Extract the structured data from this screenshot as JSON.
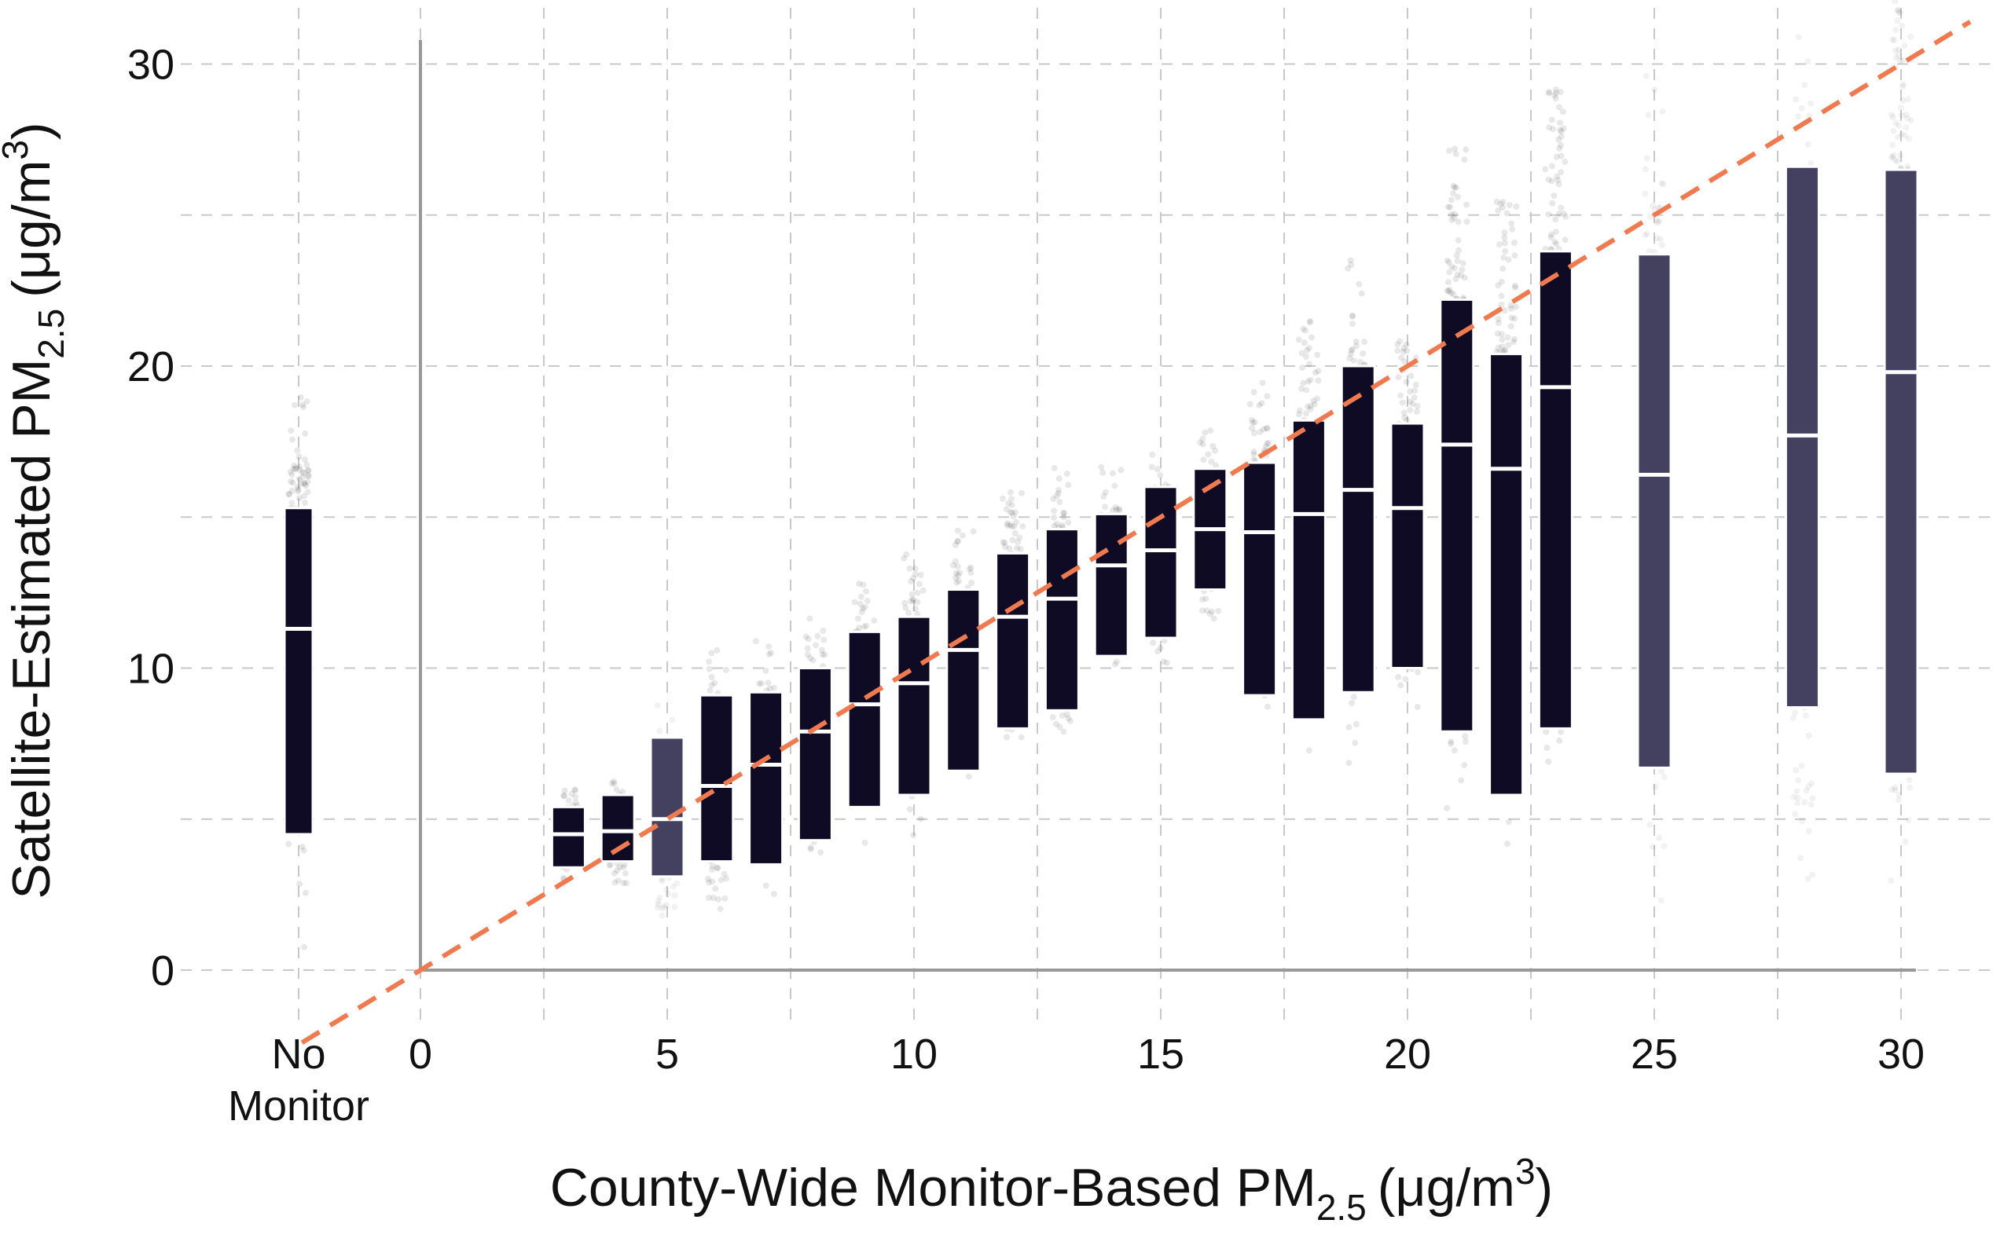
{
  "chart_data": {
    "type": "scatter",
    "title": "",
    "xlabel": {
      "main": "County-Wide Monitor-Based PM",
      "subscript": "2.5",
      "units": "(μg/m",
      "superscript": "3",
      "close": ")"
    },
    "ylabel": {
      "main": "Satellite-Estimated PM",
      "subscript": "2.5",
      "units": "(μg/m",
      "superscript": "3",
      "close": ")"
    },
    "x_ticks": [
      "0",
      "5",
      "10",
      "15",
      "20",
      "25",
      "30"
    ],
    "y_ticks": [
      "0",
      "10",
      "20",
      "30"
    ],
    "no_monitor_label": [
      "No",
      "Monitor"
    ],
    "xlim": [
      -2.5,
      31.5
    ],
    "ylim": [
      -1.2,
      31.5
    ],
    "grid": true,
    "reference_line": {
      "type": "identity",
      "slope": 1,
      "intercept": 0,
      "color": "#f07a50"
    },
    "colors": {
      "box_dark": "#0f0b24",
      "box_light": "#44405f",
      "median": "#ffffff",
      "points": "#000000",
      "axis": "#999999",
      "grid": "#c9c9c9"
    },
    "boxes": [
      {
        "x": "No Monitor",
        "low": 4.5,
        "median": 11.3,
        "high": 15.3,
        "light": false
      },
      {
        "x": 3,
        "low": 3.4,
        "median": 4.5,
        "high": 5.4,
        "light": false
      },
      {
        "x": 4,
        "low": 3.6,
        "median": 4.6,
        "high": 5.8,
        "light": false
      },
      {
        "x": 5,
        "low": 3.1,
        "median": 5.0,
        "high": 7.7,
        "light": true
      },
      {
        "x": 6,
        "low": 3.6,
        "median": 6.1,
        "high": 9.1,
        "light": false
      },
      {
        "x": 7,
        "low": 3.5,
        "median": 6.8,
        "high": 9.2,
        "light": false
      },
      {
        "x": 8,
        "low": 4.3,
        "median": 7.9,
        "high": 10.0,
        "light": false
      },
      {
        "x": 9,
        "low": 5.4,
        "median": 8.8,
        "high": 11.2,
        "light": false
      },
      {
        "x": 10,
        "low": 5.8,
        "median": 9.5,
        "high": 11.7,
        "light": false
      },
      {
        "x": 11,
        "low": 6.6,
        "median": 10.6,
        "high": 12.6,
        "light": false
      },
      {
        "x": 12,
        "low": 8.0,
        "median": 11.7,
        "high": 13.8,
        "light": false
      },
      {
        "x": 13,
        "low": 8.6,
        "median": 12.3,
        "high": 14.6,
        "light": false
      },
      {
        "x": 14,
        "low": 10.4,
        "median": 13.4,
        "high": 15.1,
        "light": false
      },
      {
        "x": 15,
        "low": 11.0,
        "median": 13.9,
        "high": 16.0,
        "light": false
      },
      {
        "x": 16,
        "low": 12.6,
        "median": 14.6,
        "high": 16.6,
        "light": false
      },
      {
        "x": 17,
        "low": 9.1,
        "median": 14.5,
        "high": 16.8,
        "light": false
      },
      {
        "x": 18,
        "low": 8.3,
        "median": 15.1,
        "high": 18.2,
        "light": false
      },
      {
        "x": 19,
        "low": 9.2,
        "median": 15.9,
        "high": 20.0,
        "light": false
      },
      {
        "x": 20,
        "low": 10.0,
        "median": 15.3,
        "high": 18.1,
        "light": false
      },
      {
        "x": 21,
        "low": 7.9,
        "median": 17.4,
        "high": 22.2,
        "light": false
      },
      {
        "x": 22,
        "low": 5.8,
        "median": 16.6,
        "high": 20.4,
        "light": false
      },
      {
        "x": 23,
        "low": 8.0,
        "median": 19.3,
        "high": 23.8,
        "light": false
      },
      {
        "x": 25,
        "low": 6.7,
        "median": 16.4,
        "high": 23.7,
        "light": true
      },
      {
        "x": 28,
        "low": 8.7,
        "median": 17.7,
        "high": 26.6,
        "light": true
      },
      {
        "x": 30,
        "low": 6.5,
        "median": 19.8,
        "high": 26.5,
        "light": true
      }
    ]
  }
}
